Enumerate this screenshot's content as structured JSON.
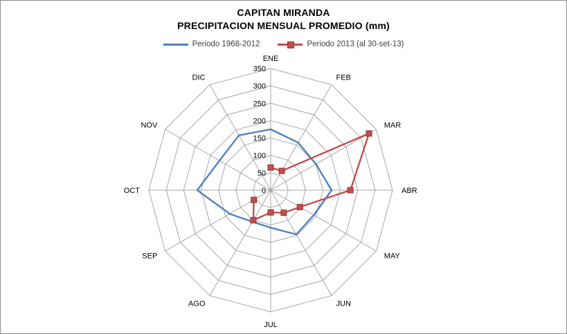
{
  "frame": {
    "background": "#FFFFFF",
    "border_color": "#8A8A8A"
  },
  "chart_data": {
    "type": "radar",
    "title": "CAPITAN MIRANDA",
    "subtitle": "PRECIPITACION MENSUAL PROMEDIO (mm)",
    "categories": [
      "ENE",
      "FEB",
      "MAR",
      "ABR",
      "MAY",
      "JUN",
      "JUL",
      "AGO",
      "SEP",
      "OCT",
      "NOV",
      "DIC"
    ],
    "radial_axis": {
      "min": 0,
      "max": 350,
      "step": 50,
      "tick_labels": [
        "0",
        "50",
        "100",
        "150",
        "200",
        "250",
        "300",
        "350"
      ]
    },
    "grid": true,
    "grid_color": "#A6A6A6",
    "legend_position": "top",
    "series": [
      {
        "name": "Periodo 1968-2012",
        "color": "#4F81BD",
        "marker": "none",
        "closed": true,
        "values": [
          175,
          158,
          150,
          175,
          143,
          147,
          108,
          105,
          136,
          211,
          170,
          182
        ]
      },
      {
        "name": "Periodo 2013 (al 30-set-13)",
        "color": "#C0504D",
        "marker": "square",
        "marker_border": "#943634",
        "closed": false,
        "values": [
          65,
          64,
          326,
          229,
          97,
          75,
          64,
          100,
          56,
          null,
          null,
          null
        ]
      }
    ]
  }
}
